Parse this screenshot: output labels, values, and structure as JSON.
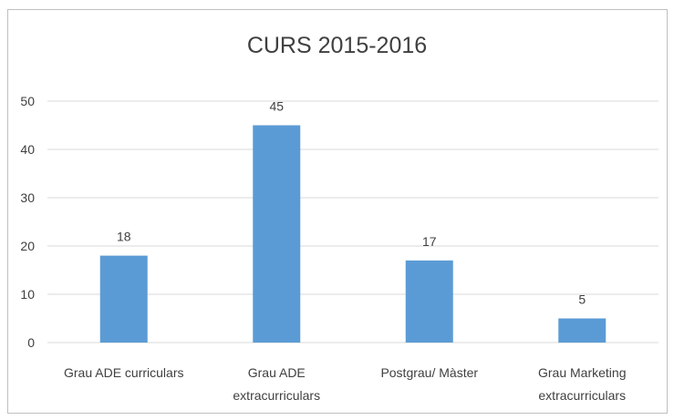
{
  "chart_data": {
    "type": "bar",
    "title": "CURS 2015-2016",
    "categories": [
      [
        "Grau ADE curriculars"
      ],
      [
        "Grau ADE",
        "extracurriculars"
      ],
      [
        "Postgrau/ Màster"
      ],
      [
        "Grau Marketing",
        "extracurriculars"
      ]
    ],
    "values": [
      18,
      45,
      17,
      5
    ],
    "value_labels": [
      "18",
      "45",
      "17",
      "5"
    ],
    "yticks": [
      0,
      10,
      20,
      30,
      40,
      50
    ],
    "ytick_labels": [
      "0",
      "10",
      "20",
      "30",
      "40",
      "50"
    ],
    "ylim": [
      0,
      50
    ],
    "xlabel": "",
    "ylabel": "",
    "grid": true,
    "legend": "none",
    "colors": {
      "bar": "#5b9bd5",
      "grid": "#d9d9d9",
      "text": "#404040"
    }
  }
}
